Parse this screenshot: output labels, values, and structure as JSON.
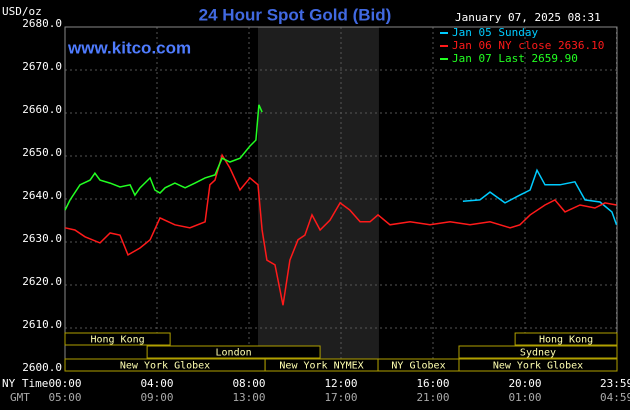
{
  "chart_data": {
    "type": "line",
    "title": "24 Hour Spot Gold (Bid)",
    "y_label": "USD/oz",
    "watermark": "www.kitco.com",
    "timestamp": "January 07, 2025 08:31",
    "x_row_label": "NY Time",
    "x2_row_label": "GMT",
    "xlim": [
      0,
      24
    ],
    "ylim": [
      2600,
      2680
    ],
    "xticks": [
      {
        "value": 0,
        "label": "00:00"
      },
      {
        "value": 4,
        "label": "04:00"
      },
      {
        "value": 8,
        "label": "08:00"
      },
      {
        "value": 12,
        "label": "12:00"
      },
      {
        "value": 16,
        "label": "16:00"
      },
      {
        "value": 20,
        "label": "20:00"
      },
      {
        "value": 23.98,
        "label": "23:59"
      }
    ],
    "x2ticks": [
      {
        "value": 0,
        "label": "05:00"
      },
      {
        "value": 4,
        "label": "09:00"
      },
      {
        "value": 8,
        "label": "13:00"
      },
      {
        "value": 12,
        "label": "17:00"
      },
      {
        "value": 16,
        "label": "21:00"
      },
      {
        "value": 20,
        "label": "01:00"
      },
      {
        "value": 23.98,
        "label": "04:59"
      }
    ],
    "yticks": [
      {
        "value": 2600,
        "label": "2600.0"
      },
      {
        "value": 2610,
        "label": "2610.0"
      },
      {
        "value": 2620,
        "label": "2620.0"
      },
      {
        "value": 2630,
        "label": "2630.0"
      },
      {
        "value": 2640,
        "label": "2640.0"
      },
      {
        "value": 2650,
        "label": "2650.0"
      },
      {
        "value": 2660,
        "label": "2660.0"
      },
      {
        "value": 2670,
        "label": "2670.0"
      },
      {
        "value": 2680,
        "label": "2680.0"
      }
    ],
    "grid": true,
    "highlight_x": [
      8.39,
      13.65
    ],
    "sessions": [
      [
        {
          "label": "Hong Kong",
          "start": 0,
          "end": 4.57
        },
        {
          "label": "Hong Kong",
          "start": 19.57,
          "end": 24
        }
      ],
      [
        {
          "label": "London",
          "start": 3.57,
          "end": 11.09
        },
        {
          "label": "Sydney",
          "start": 17.13,
          "end": 24
        }
      ],
      [
        {
          "label": "New York Globex",
          "start": 0,
          "end": 8.7
        },
        {
          "label": "New York NYMEX",
          "start": 8.7,
          "end": 13.61
        },
        {
          "label": "NY Globex",
          "start": 13.61,
          "end": 17.13
        },
        {
          "label": "New York Globex",
          "start": 17.13,
          "end": 24
        }
      ]
    ],
    "series": [
      {
        "name": "Jan 05 Sunday",
        "color": "#00ccff",
        "x": [
          17.3,
          18.04,
          18.48,
          19.13,
          19.78,
          20.22,
          20.52,
          20.87,
          21.52,
          22.17,
          22.61,
          23.26,
          23.78,
          23.98
        ],
        "values": [
          2639.5,
          2639.8,
          2641.6,
          2639.1,
          2640.9,
          2642.1,
          2646.7,
          2643.3,
          2643.3,
          2644.0,
          2639.8,
          2639.3,
          2637.0,
          2634.0
        ]
      },
      {
        "name": "Jan 06 NY close 2636.10",
        "color": "#ff1a1a",
        "x": [
          0,
          0.43,
          0.87,
          1.52,
          1.96,
          2.39,
          2.74,
          3.26,
          3.7,
          4.13,
          4.78,
          5.43,
          6.09,
          6.3,
          6.52,
          6.83,
          7.17,
          7.61,
          8.04,
          8.39,
          8.57,
          8.78,
          9.13,
          9.48,
          9.78,
          10.13,
          10.43,
          10.74,
          11.09,
          11.52,
          11.96,
          12.39,
          12.83,
          13.26,
          13.61,
          14.13,
          15,
          15.87,
          16.74,
          17.61,
          18.48,
          19.35,
          19.78,
          20.22,
          20.87,
          21.3,
          21.74,
          22.39,
          23.04,
          23.48,
          23.98
        ],
        "values": [
          2633.3,
          2632.8,
          2631.2,
          2629.8,
          2632.1,
          2631.6,
          2627.0,
          2628.6,
          2630.5,
          2635.6,
          2634.0,
          2633.3,
          2634.7,
          2643.3,
          2644.4,
          2650.2,
          2647.2,
          2642.1,
          2644.9,
          2643.3,
          2632.8,
          2625.8,
          2624.7,
          2615.3,
          2625.8,
          2630.5,
          2631.6,
          2636.3,
          2632.8,
          2635.1,
          2639.1,
          2637.4,
          2634.7,
          2634.7,
          2636.3,
          2634.0,
          2634.7,
          2634.0,
          2634.7,
          2634.0,
          2634.7,
          2633.3,
          2634.0,
          2636.3,
          2638.6,
          2639.8,
          2637.0,
          2638.6,
          2637.9,
          2639.1,
          2638.6
        ]
      },
      {
        "name": "Jan 07 Last 2659.90",
        "color": "#22ff22",
        "x": [
          0,
          0.22,
          0.65,
          1.09,
          1.3,
          1.52,
          1.96,
          2.39,
          2.83,
          3.04,
          3.26,
          3.7,
          3.91,
          4.13,
          4.35,
          4.78,
          5.22,
          5.65,
          6.09,
          6.52,
          6.83,
          7.17,
          7.61,
          8.04,
          8.3,
          8.43,
          8.57
        ],
        "values": [
          2637.4,
          2639.8,
          2643.3,
          2644.4,
          2646.0,
          2644.4,
          2643.7,
          2642.8,
          2643.3,
          2640.9,
          2642.6,
          2644.9,
          2642.1,
          2641.4,
          2642.6,
          2643.7,
          2642.6,
          2643.7,
          2644.9,
          2645.6,
          2649.5,
          2648.6,
          2649.5,
          2652.3,
          2653.7,
          2661.9,
          2660.2
        ]
      }
    ]
  }
}
